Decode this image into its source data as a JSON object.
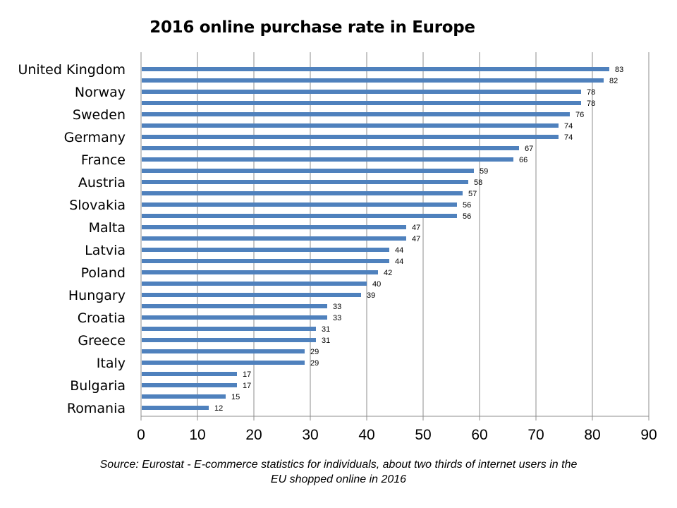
{
  "chart_data": {
    "type": "bar",
    "orientation": "horizontal",
    "title": "2016 online purchase rate in Europe",
    "source": "Source: Eurostat - E-commerce statistics for individuals, about two thirds of internet users in the EU shopped online in 2016",
    "xlabel": "",
    "ylabel": "",
    "xlim": [
      0,
      90
    ],
    "x_ticks": [
      "0",
      "10",
      "20",
      "30",
      "40",
      "50",
      "60",
      "70",
      "80",
      "90"
    ],
    "grid": "vertical",
    "bar_color": "#4f81bd",
    "category_labels_shown": [
      "United Kingdom",
      "Norway",
      "Sweden",
      "Germany",
      "France",
      "Austria",
      "Slovakia",
      "Malta",
      "Latvia",
      "Poland",
      "Hungary",
      "Croatia",
      "Greece",
      "Italy",
      "Bulgaria",
      "Romania"
    ],
    "values": [
      83,
      82,
      78,
      78,
      76,
      74,
      74,
      67,
      66,
      59,
      58,
      57,
      56,
      56,
      47,
      47,
      44,
      44,
      42,
      40,
      39,
      33,
      33,
      31,
      31,
      29,
      29,
      17,
      17,
      15,
      12
    ],
    "data_labels": [
      "83",
      "82",
      "78",
      "78",
      "76",
      "74",
      "74",
      "67",
      "66",
      "59",
      "58",
      "57",
      "56",
      "56",
      "47",
      "47",
      "44",
      "44",
      "42",
      "40",
      "39",
      "33",
      "33",
      "31",
      "31",
      "29",
      "29",
      "17",
      "17",
      "15",
      "12"
    ]
  }
}
